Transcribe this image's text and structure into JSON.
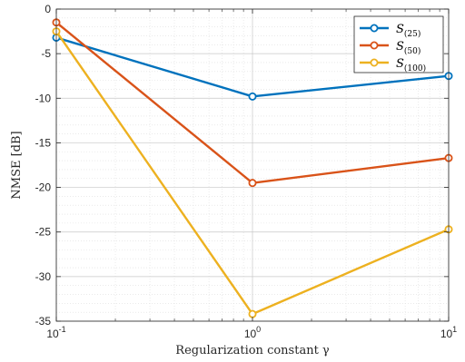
{
  "chart_data": {
    "type": "line",
    "x_scale": "log",
    "xlabel": "Regularization constant γ",
    "ylabel": "NMSE [dB]",
    "xlim": [
      0.1,
      10
    ],
    "ylim": [
      -35,
      0
    ],
    "x": [
      0.1,
      1,
      10
    ],
    "x_ticks": [
      0.1,
      1,
      10
    ],
    "x_tick_labels": [
      {
        "base": "10",
        "exp": "-1"
      },
      {
        "base": "10",
        "exp": "0"
      },
      {
        "base": "10",
        "exp": "1"
      }
    ],
    "y_ticks": [
      0,
      -5,
      -10,
      -15,
      -20,
      -25,
      -30,
      -35
    ],
    "y_tick_labels": [
      "0",
      "-5",
      "-10",
      "-15",
      "-20",
      "-25",
      "-30",
      "-35"
    ],
    "grid": true,
    "minor_grid": true,
    "legend_position": "top-right",
    "series": [
      {
        "name": "S",
        "subscript": "(25)",
        "color": "#0072BD",
        "values": [
          -3.2,
          -9.8,
          -7.5
        ]
      },
      {
        "name": "S",
        "subscript": "(50)",
        "color": "#D95319",
        "values": [
          -1.5,
          -19.5,
          -16.7
        ]
      },
      {
        "name": "S",
        "subscript": "(100)",
        "color": "#EDB120",
        "values": [
          -2.5,
          -34.2,
          -24.7
        ]
      }
    ]
  }
}
